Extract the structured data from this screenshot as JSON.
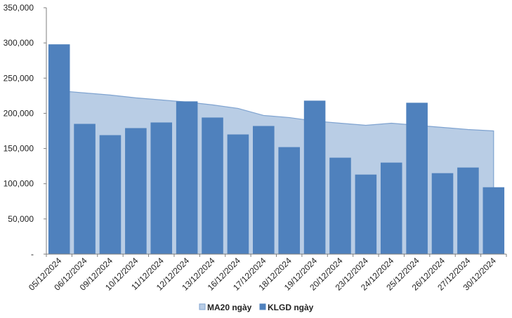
{
  "chart_data": {
    "type": "bar",
    "categories": [
      "05/12/2024",
      "06/12/2024",
      "09/12/2024",
      "10/12/2024",
      "11/12/2024",
      "12/12/2024",
      "13/12/2024",
      "16/12/2024",
      "17/12/2024",
      "18/12/2024",
      "19/12/2024",
      "20/12/2024",
      "23/12/2024",
      "24/12/2024",
      "25/12/2024",
      "26/12/2024",
      "27/12/2024",
      "30/12/2024"
    ],
    "series": [
      {
        "name": "KLGD ngày",
        "kind": "bar",
        "color": "#4F81BD",
        "values": [
          298000,
          185000,
          169000,
          179000,
          187000,
          217000,
          194000,
          170000,
          182000,
          152000,
          218000,
          137000,
          113000,
          130000,
          215000,
          115000,
          123000,
          95000
        ]
      },
      {
        "name": "MA20 ngày",
        "kind": "area",
        "color": "#B9CDE5",
        "line_color": "#7FA3D0",
        "values": [
          232000,
          229000,
          226000,
          222000,
          219000,
          216000,
          212000,
          207000,
          197000,
          194000,
          189000,
          186000,
          183000,
          186000,
          183000,
          180000,
          177000,
          175000
        ]
      }
    ],
    "y_ticks": [
      0,
      50000,
      100000,
      150000,
      200000,
      250000,
      300000,
      350000
    ],
    "y_tick_labels": [
      "-",
      "50,000",
      "100,000",
      "150,000",
      "200,000",
      "250,000",
      "300,000",
      "350,000"
    ],
    "ylim": [
      0,
      350000
    ],
    "title": "",
    "xlabel": "",
    "ylabel": "",
    "grid": false,
    "legend_position": "bottom-center",
    "legend": [
      {
        "label": "MA20 ngày",
        "color": "#B9CDE5",
        "border": "#7FA3D0"
      },
      {
        "label": "KLGD ngày",
        "color": "#4F81BD",
        "border": "#4F81BD"
      }
    ]
  }
}
